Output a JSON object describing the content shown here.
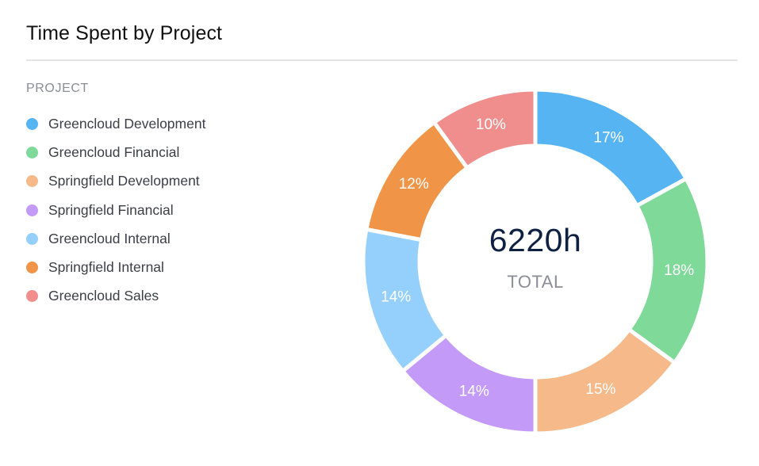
{
  "header": {
    "title": "Time Spent by Project"
  },
  "legend": {
    "heading": "PROJECT"
  },
  "center": {
    "value": "6220h",
    "caption": "TOTAL"
  },
  "chart_data": {
    "type": "pie",
    "variant": "donut",
    "title": "Time Spent by Project",
    "legend_title": "PROJECT",
    "legend_position": "left",
    "total_label": "6220h",
    "total_caption": "TOTAL",
    "total_hours": 6220,
    "start": "top",
    "direction": "clockwise",
    "categories": [
      "Greencloud Development",
      "Greencloud Financial",
      "Springfield Development",
      "Springfield Financial",
      "Greencloud Internal",
      "Springfield Internal",
      "Greencloud Sales"
    ],
    "values": [
      17,
      18,
      15,
      14,
      14,
      12,
      10
    ],
    "labels": [
      "17%",
      "18%",
      "15%",
      "14%",
      "14%",
      "12%",
      "10%"
    ],
    "unit": "%",
    "colors": [
      "#56b4f2",
      "#7fda9a",
      "#f5b98a",
      "#c39af8",
      "#95cffb",
      "#f09548",
      "#f08e8e"
    ]
  }
}
